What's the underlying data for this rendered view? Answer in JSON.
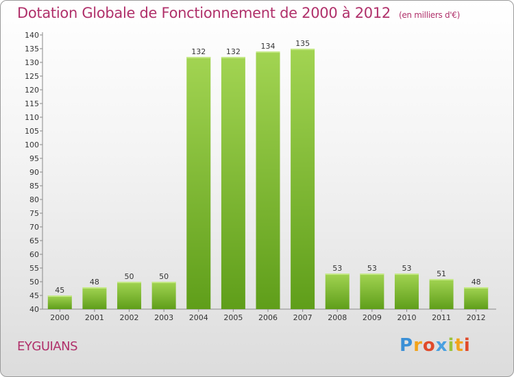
{
  "header": {
    "title": "Dotation Globale de Fonctionnement de 2000 à 2012",
    "unit": "(en milliers d'€)"
  },
  "commune": "EYGUIANS",
  "logo": {
    "text": "Proxiti",
    "letters": [
      "P",
      "r",
      "o",
      "x",
      "i",
      "t",
      "i"
    ]
  },
  "colors": {
    "title": "#b0306a",
    "bar_light": "#a2d452",
    "bar_dark": "#5f9e1a",
    "axis": "#888888"
  },
  "chart_data": {
    "type": "bar",
    "categories": [
      "2000",
      "2001",
      "2002",
      "2003",
      "2004",
      "2005",
      "2006",
      "2007",
      "2008",
      "2009",
      "2010",
      "2011",
      "2012"
    ],
    "values": [
      45,
      48,
      50,
      50,
      132,
      132,
      134,
      135,
      53,
      53,
      53,
      51,
      48
    ],
    "ylim": [
      40,
      140
    ],
    "yticks": [
      40,
      45,
      50,
      55,
      60,
      65,
      70,
      75,
      80,
      85,
      90,
      95,
      100,
      105,
      110,
      115,
      120,
      125,
      130,
      135,
      140
    ],
    "grid": false,
    "data_labels": true
  }
}
